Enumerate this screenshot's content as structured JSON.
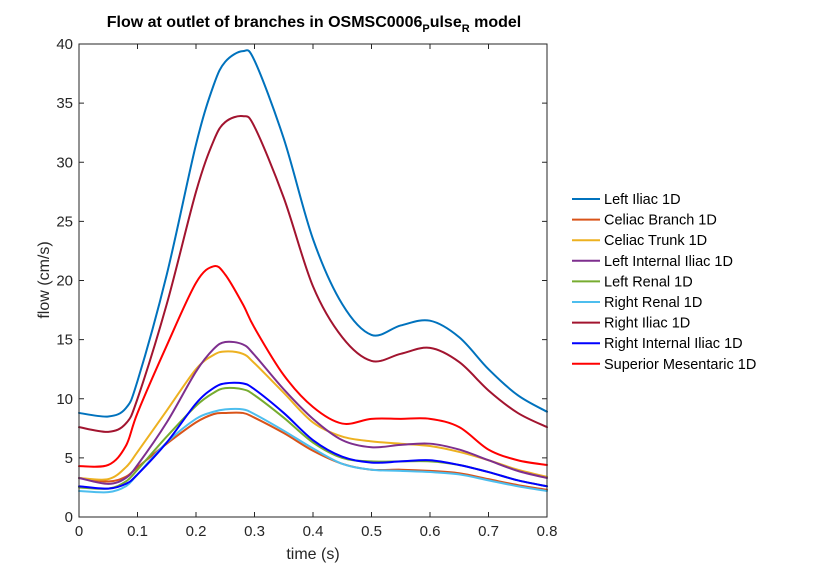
{
  "chart_data": {
    "type": "line",
    "title": {
      "prefix": "Flow at outlet of branches in OSMSC0006",
      "sub1": "P",
      "mid": "ulse",
      "sub2": "R",
      "suffix": " model"
    },
    "xlabel": "time (s)",
    "ylabel": "flow (cm/s)",
    "xlim": [
      0,
      0.8
    ],
    "ylim": [
      0,
      40
    ],
    "xticks": [
      0,
      0.1,
      0.2,
      0.3,
      0.4,
      0.5,
      0.6,
      0.7,
      0.8
    ],
    "xtick_labels": [
      "0",
      "0.1",
      "0.2",
      "0.3",
      "0.4",
      "0.5",
      "0.6",
      "0.7",
      "0.8"
    ],
    "yticks": [
      0,
      5,
      10,
      15,
      20,
      25,
      30,
      35,
      40
    ],
    "ytick_labels": [
      "0",
      "5",
      "10",
      "15",
      "20",
      "25",
      "30",
      "35",
      "40"
    ],
    "grid": false,
    "legend_position": "outside-right",
    "x": [
      0,
      0.05,
      0.08,
      0.1,
      0.15,
      0.2,
      0.23,
      0.25,
      0.28,
      0.3,
      0.35,
      0.4,
      0.45,
      0.5,
      0.55,
      0.6,
      0.65,
      0.7,
      0.75,
      0.8
    ],
    "series": [
      {
        "name": "Left Iliac 1D",
        "color": "#0072BD",
        "values": [
          8.8,
          8.5,
          9.2,
          11.5,
          20.5,
          31.5,
          36.5,
          38.5,
          39.4,
          38.6,
          32.0,
          23.5,
          18.0,
          15.4,
          16.2,
          16.6,
          15.2,
          12.5,
          10.3,
          8.9
        ]
      },
      {
        "name": "Celiac Branch 1D",
        "color": "#D95319",
        "values": [
          3.3,
          3.0,
          3.4,
          4.2,
          6.2,
          8.0,
          8.7,
          8.8,
          8.8,
          8.4,
          7.1,
          5.6,
          4.5,
          4.0,
          4.0,
          3.9,
          3.7,
          3.2,
          2.7,
          2.3
        ]
      },
      {
        "name": "Celiac Trunk 1D",
        "color": "#EDB120",
        "values": [
          3.3,
          3.2,
          4.2,
          5.5,
          9.0,
          12.5,
          13.7,
          14.0,
          13.8,
          13.0,
          10.5,
          8.0,
          6.8,
          6.4,
          6.2,
          6.0,
          5.5,
          4.8,
          4.0,
          3.4
        ]
      },
      {
        "name": "Left Internal Iliac 1D",
        "color": "#7E2F8E",
        "values": [
          3.3,
          2.8,
          3.3,
          4.4,
          8.0,
          12.3,
          14.2,
          14.8,
          14.6,
          13.7,
          10.8,
          8.3,
          6.5,
          5.9,
          6.1,
          6.2,
          5.7,
          4.8,
          3.9,
          3.3
        ]
      },
      {
        "name": "Left Renal 1D",
        "color": "#77AC30",
        "values": [
          2.5,
          2.4,
          3.0,
          4.0,
          6.8,
          9.4,
          10.5,
          10.9,
          10.8,
          10.3,
          8.4,
          6.3,
          5.0,
          4.7,
          4.7,
          4.7,
          4.4,
          3.8,
          3.1,
          2.6
        ]
      },
      {
        "name": "Right Renal 1D",
        "color": "#4DBEEE",
        "values": [
          2.2,
          2.1,
          2.6,
          3.6,
          6.3,
          8.3,
          8.9,
          9.1,
          9.1,
          8.7,
          7.3,
          5.8,
          4.5,
          4.0,
          3.9,
          3.8,
          3.6,
          3.1,
          2.6,
          2.2
        ]
      },
      {
        "name": "Right Iliac 1D",
        "color": "#A2142F",
        "values": [
          7.6,
          7.2,
          7.9,
          10.0,
          18.0,
          27.5,
          31.8,
          33.4,
          33.9,
          33.0,
          27.0,
          19.5,
          15.2,
          13.2,
          13.8,
          14.3,
          13.1,
          10.7,
          8.8,
          7.6
        ]
      },
      {
        "name": "Right Internal Iliac 1D",
        "color": "#0000FF",
        "values": [
          2.6,
          2.4,
          2.8,
          3.6,
          6.3,
          9.6,
          10.9,
          11.3,
          11.3,
          10.8,
          8.8,
          6.5,
          5.1,
          4.6,
          4.7,
          4.8,
          4.4,
          3.8,
          3.1,
          2.6
        ]
      },
      {
        "name": "Superior Mesentaric 1D",
        "color": "#FF0000",
        "values": [
          4.3,
          4.4,
          6.0,
          8.8,
          14.5,
          19.8,
          21.2,
          20.5,
          18.0,
          16.0,
          12.0,
          9.3,
          7.9,
          8.3,
          8.3,
          8.3,
          7.6,
          5.7,
          4.8,
          4.4
        ]
      }
    ]
  }
}
